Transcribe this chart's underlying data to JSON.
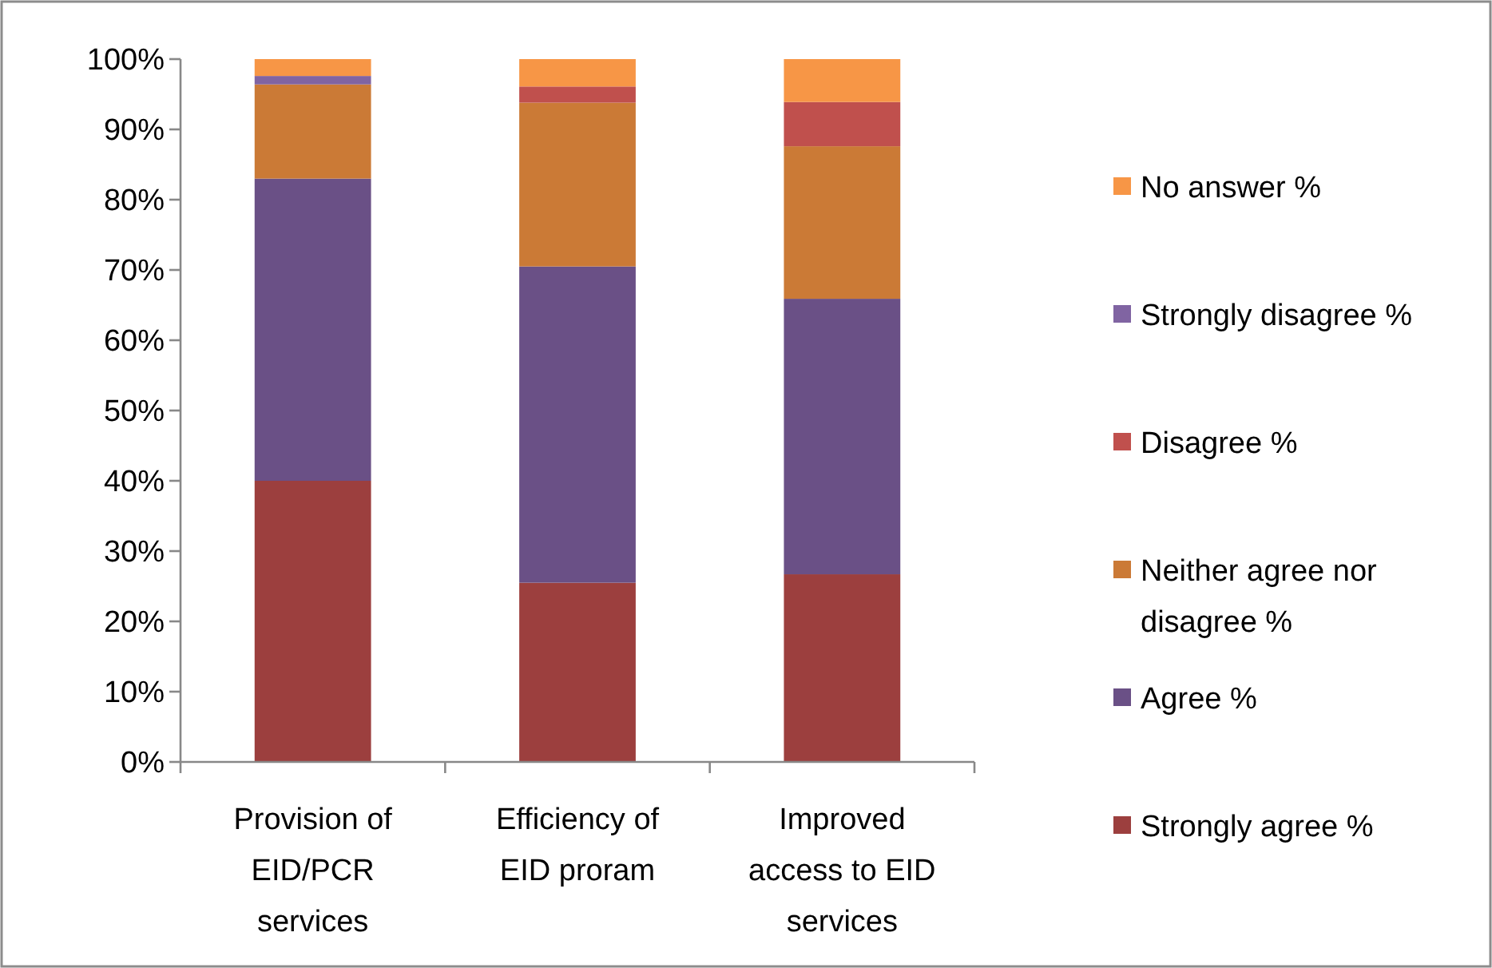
{
  "chart_data": {
    "type": "bar",
    "stacked": true,
    "categories": [
      "Provision of EID/PCR services",
      "Efficiency of EID proram",
      "Improved access to EID services"
    ],
    "series": [
      {
        "name": "Strongly agree %",
        "color": "#9c3f3e",
        "values": [
          40,
          25.5,
          26.7
        ]
      },
      {
        "name": "Agree %",
        "color": "#6a5086",
        "values": [
          43,
          45,
          39.2
        ]
      },
      {
        "name": "Neither agree nor disagree %",
        "color": "#cb7a36",
        "values": [
          13.4,
          23.3,
          21.7
        ]
      },
      {
        "name": "Disagree %",
        "color": "#c0504d",
        "values": [
          null,
          2.3,
          6.3
        ]
      },
      {
        "name": "Strongly disagree %",
        "color": "#8064a2",
        "values": [
          1.2,
          null,
          null
        ]
      },
      {
        "name": "No answer %",
        "color": "#f79646",
        "values": [
          2.4,
          3.9,
          6.1
        ]
      }
    ],
    "ylim": [
      0,
      100
    ],
    "yticks": [
      {
        "value": 0,
        "label": "0%"
      },
      {
        "value": 10,
        "label": "10%"
      },
      {
        "value": 20,
        "label": "20%"
      },
      {
        "value": 30,
        "label": "30%"
      },
      {
        "value": 40,
        "label": "40%"
      },
      {
        "value": 50,
        "label": "50%"
      },
      {
        "value": 60,
        "label": "60%"
      },
      {
        "value": 70,
        "label": "70%"
      },
      {
        "value": 80,
        "label": "80%"
      },
      {
        "value": 90,
        "label": "90%"
      },
      {
        "value": 100,
        "label": "100%"
      }
    ],
    "grid": false,
    "legend": "right"
  }
}
